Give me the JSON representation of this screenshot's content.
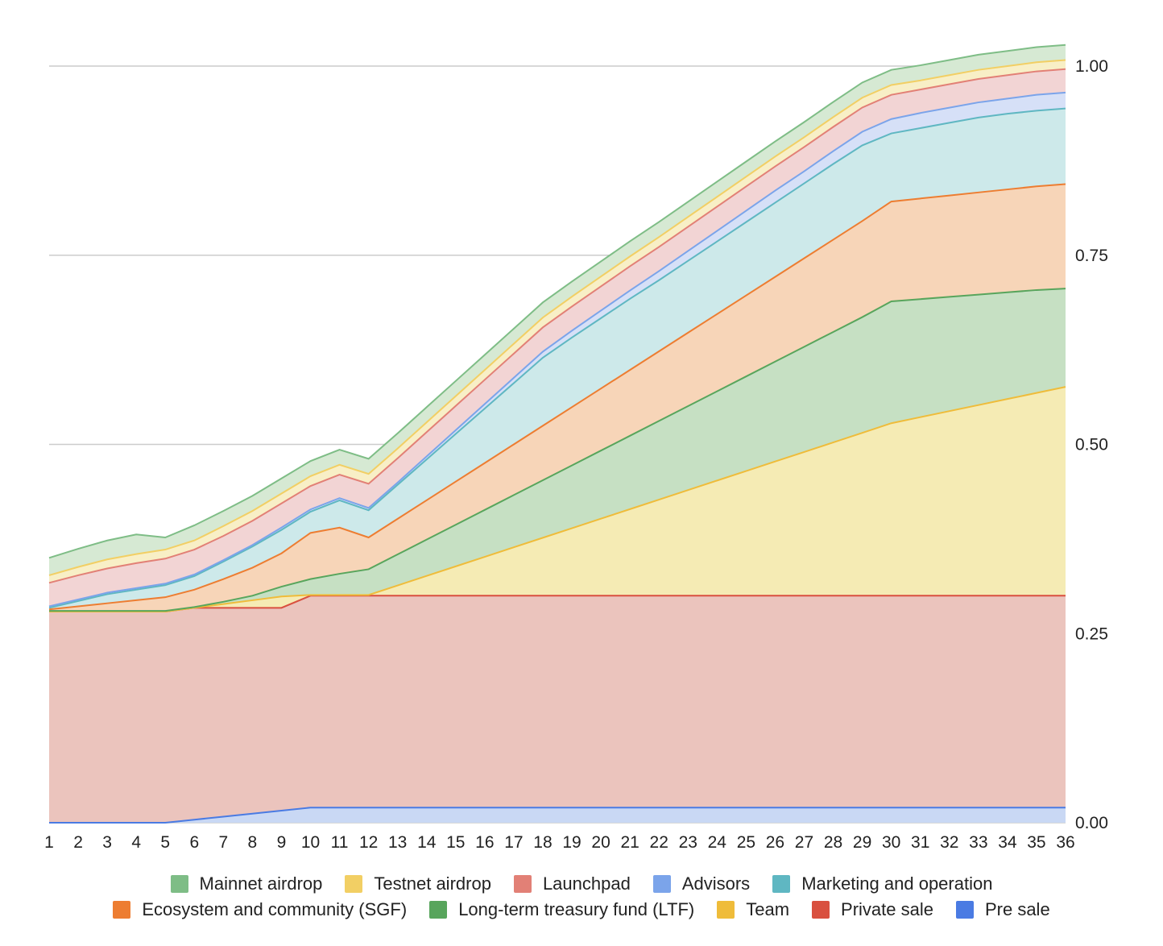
{
  "chart_data": {
    "type": "area",
    "stacked": true,
    "title": "",
    "xlabel": "",
    "ylabel": "",
    "x": [
      1,
      2,
      3,
      4,
      5,
      6,
      7,
      8,
      9,
      10,
      11,
      12,
      13,
      14,
      15,
      16,
      17,
      18,
      19,
      20,
      21,
      22,
      23,
      24,
      25,
      26,
      27,
      28,
      29,
      30,
      31,
      32,
      33,
      34,
      35,
      36
    ],
    "ylim": [
      0,
      1
    ],
    "yticks": [
      "0.00",
      "0.25",
      "0.50",
      "0.75",
      "1.00"
    ],
    "yticks_values": [
      0,
      0.25,
      0.5,
      0.75,
      1
    ],
    "y_axis_side": "right",
    "grid": true,
    "legend_position": "bottom",
    "series": [
      {
        "name": "Pre sale",
        "color": "#4a7be3",
        "fill": "#c9d8f4",
        "values": [
          0,
          0,
          0,
          0,
          0,
          0.004,
          0.008,
          0.012,
          0.016,
          0.02,
          0.02,
          0.02,
          0.02,
          0.02,
          0.02,
          0.02,
          0.02,
          0.02,
          0.02,
          0.02,
          0.02,
          0.02,
          0.02,
          0.02,
          0.02,
          0.02,
          0.02,
          0.02,
          0.02,
          0.02,
          0.02,
          0.02,
          0.02,
          0.02,
          0.02,
          0.02
        ]
      },
      {
        "name": "Private sale",
        "color": "#d9503f",
        "fill": "#ebc4bd",
        "values": [
          0.279,
          0.279,
          0.279,
          0.279,
          0.279,
          0.28,
          0.276,
          0.272,
          0.268,
          0.28,
          0.28,
          0.28,
          0.28,
          0.28,
          0.28,
          0.28,
          0.28,
          0.28,
          0.28,
          0.28,
          0.28,
          0.28,
          0.28,
          0.28,
          0.28,
          0.28,
          0.28,
          0.28,
          0.28,
          0.28,
          0.28,
          0.28,
          0.28,
          0.28,
          0.28,
          0.28
        ]
      },
      {
        "name": "Team",
        "color": "#efbc3a",
        "fill": "#f5ebb4",
        "values": [
          0,
          0,
          0,
          0,
          0,
          0,
          0.005,
          0.01,
          0.015,
          0.001,
          0.001,
          0.001,
          0.0136,
          0.0262,
          0.0388,
          0.0514,
          0.064,
          0.0766,
          0.0892,
          0.1018,
          0.1144,
          0.127,
          0.1396,
          0.1522,
          0.1648,
          0.1774,
          0.19,
          0.2026,
          0.2152,
          0.228,
          0.236,
          0.244,
          0.252,
          0.26,
          0.268,
          0.276
        ]
      },
      {
        "name": "Long-term treasury fund (LTF)",
        "color": "#58a55c",
        "fill": "#c6e0c3",
        "values": [
          0.001,
          0.001,
          0.001,
          0.001,
          0.001,
          0.001,
          0.003,
          0.006,
          0.013,
          0.021,
          0.028,
          0.034,
          0.041,
          0.048,
          0.055,
          0.062,
          0.069,
          0.076,
          0.083,
          0.09,
          0.097,
          0.104,
          0.111,
          0.118,
          0.125,
          0.132,
          0.139,
          0.146,
          0.153,
          0.161,
          0.156,
          0.151,
          0.146,
          0.141,
          0.136,
          0.13
        ]
      },
      {
        "name": "Ecosystem and community (SGF)",
        "color": "#ed7d31",
        "fill": "#f7d5b8",
        "values": [
          0.002,
          0.006,
          0.01,
          0.014,
          0.018,
          0.023,
          0.03,
          0.037,
          0.044,
          0.061,
          0.061,
          0.042,
          0.047,
          0.052,
          0.057,
          0.062,
          0.067,
          0.072,
          0.077,
          0.082,
          0.087,
          0.092,
          0.097,
          0.102,
          0.107,
          0.112,
          0.117,
          0.122,
          0.127,
          0.132,
          0.133,
          0.134,
          0.135,
          0.136,
          0.137,
          0.138
        ]
      },
      {
        "name": "Marketing and operation",
        "color": "#5fb7c2",
        "fill": "#cde9ea",
        "values": [
          0.002,
          0.007,
          0.012,
          0.014,
          0.016,
          0.018,
          0.023,
          0.028,
          0.031,
          0.028,
          0.036,
          0.036,
          0.045,
          0.054,
          0.063,
          0.072,
          0.081,
          0.09,
          0.092,
          0.093,
          0.094,
          0.094,
          0.095,
          0.096,
          0.097,
          0.098,
          0.099,
          0.1,
          0.1,
          0.09,
          0.093,
          0.096,
          0.099,
          0.1,
          0.1,
          0.1
        ]
      },
      {
        "name": "Advisors",
        "color": "#7ba4ea",
        "fill": "#d6e0f7",
        "values": [
          0.002,
          0.002,
          0.002,
          0.002,
          0.002,
          0.002,
          0.002,
          0.002,
          0.003,
          0.003,
          0.003,
          0.003,
          0.003,
          0.004,
          0.005,
          0.006,
          0.007,
          0.008,
          0.009,
          0.01,
          0.011,
          0.012,
          0.013,
          0.014,
          0.015,
          0.016,
          0.016,
          0.017,
          0.018,
          0.019,
          0.02,
          0.02,
          0.02,
          0.02,
          0.021,
          0.021
        ]
      },
      {
        "name": "Launchpad",
        "color": "#e28076",
        "fill": "#f2d4d4",
        "values": [
          0.031,
          0.032,
          0.032,
          0.033,
          0.033,
          0.033,
          0.032,
          0.032,
          0.032,
          0.031,
          0.031,
          0.032,
          0.032,
          0.032,
          0.032,
          0.032,
          0.032,
          0.032,
          0.032,
          0.032,
          0.032,
          0.032,
          0.032,
          0.032,
          0.032,
          0.032,
          0.032,
          0.032,
          0.032,
          0.032,
          0.031,
          0.031,
          0.031,
          0.031,
          0.031,
          0.031
        ]
      },
      {
        "name": "Testnet airdrop",
        "color": "#f2cf64",
        "fill": "#f8efc6",
        "values": [
          0.01,
          0.011,
          0.012,
          0.012,
          0.012,
          0.012,
          0.013,
          0.013,
          0.013,
          0.013,
          0.013,
          0.013,
          0.013,
          0.013,
          0.013,
          0.013,
          0.013,
          0.013,
          0.013,
          0.013,
          0.013,
          0.013,
          0.013,
          0.013,
          0.013,
          0.013,
          0.013,
          0.013,
          0.013,
          0.013,
          0.012,
          0.012,
          0.012,
          0.012,
          0.012,
          0.012
        ]
      },
      {
        "name": "Mainnet airdrop",
        "color": "#7ebd86",
        "fill": "#d6e9d3",
        "values": [
          0.023,
          0.024,
          0.025,
          0.026,
          0.016,
          0.02,
          0.02,
          0.02,
          0.02,
          0.02,
          0.02,
          0.02,
          0.02,
          0.02,
          0.02,
          0.02,
          0.02,
          0.02,
          0.02,
          0.02,
          0.02,
          0.02,
          0.02,
          0.02,
          0.02,
          0.02,
          0.02,
          0.02,
          0.02,
          0.02,
          0.02,
          0.02,
          0.02,
          0.02,
          0.02,
          0.02
        ]
      }
    ]
  },
  "legend": {
    "row1": [
      {
        "label": "Mainnet airdrop",
        "color": "#7ebd86"
      },
      {
        "label": "Testnet airdrop",
        "color": "#f2cf64"
      },
      {
        "label": "Launchpad",
        "color": "#e28076"
      },
      {
        "label": "Advisors",
        "color": "#7ba4ea"
      },
      {
        "label": "Marketing and operation",
        "color": "#5fb7c2"
      }
    ],
    "row2": [
      {
        "label": "Ecosystem and community (SGF)",
        "color": "#ed7d31"
      },
      {
        "label": "Long-term treasury fund (LTF)",
        "color": "#58a55c"
      },
      {
        "label": "Team",
        "color": "#efbc3a"
      },
      {
        "label": "Private sale",
        "color": "#d9503f"
      },
      {
        "label": "Pre sale",
        "color": "#4a7be3"
      }
    ]
  }
}
